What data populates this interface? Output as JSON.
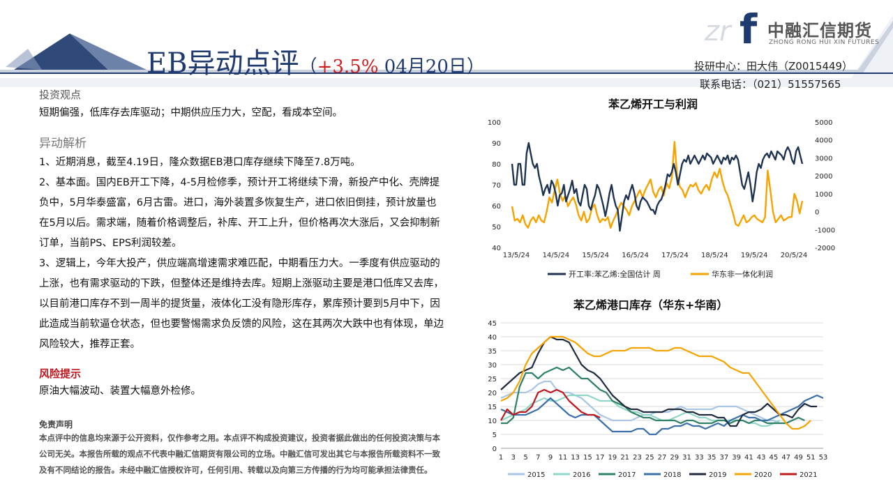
{
  "header": {
    "title": "EB异动点评",
    "title_open": "（",
    "change": "+3.5%",
    "date": "04月20日）"
  },
  "logo": {
    "cn_name": "中融汇信期货",
    "en_name": "ZHONG RONG HUI XIN FUTURES",
    "mark": "f",
    "mark_ghost": "zr"
  },
  "contact": {
    "researcher": "投研中心：田大伟（Z0015449）",
    "phone": "联系电话：（021）51557565"
  },
  "view": {
    "heading": "投资观点",
    "text": "短期偏强，低库存去库驱动；中期供应压力大，空配，看成本空间。"
  },
  "analysis": {
    "heading": "异动解析",
    "p1": "1、近期消息，截至4.19日，隆众数据EB港口库存继续下降至7.8万吨。",
    "p2": "2、基本面。国内EB开工下降，4-5月检修季，预计开工将继续下滑，新投产中化、壳牌提负中，5月华泰盛富，6月古雷。进口，海外装置多恢复生产，进口依旧倒挂，预计放量也在5月以后。需求端，随着价格调整后，补库、开工上升，但价格再次大涨后，又会抑制新订单，当前PS、EPS利润较差。",
    "p3": "3、逻辑上，今年大投产，供应端高增速需求难匹配，中期看压力大。一季度有供应驱动的上涨，也有需求驱动的下跌，但整体还是维持去库。短期上涨驱动主要是港口低库又去库，以目前港口库存不到一周半的提货量，液体化工没有隐形库存，累库预计要到5月中下，因此造成当前软逼仓状态，但也要警惕需求负反馈的风险，这在其两次大跌中也有体现，单边风险较大，推荐正套。"
  },
  "risk": {
    "heading": "风险提示",
    "text": "原油大幅波动、装置大幅意外检修。"
  },
  "disclaimer": {
    "heading": "免责声明",
    "text": "本点评中的信息均来源于公开资料，仅作参考之用。本点评不构成投资建议，投资者据此做出的任何投资决策与本公司无关。本报告所载的观点不代表中融汇信期货有限公司的立场。中融汇信可发出其它与本报告所载资料不一致及有不同结论的报告。未经中融汇信授权许可，任何引用、转载以及向第三方传播的行为均可能承担法律责任。"
  },
  "colors": {
    "navy": "#1f3a6e",
    "red": "#d01c1c",
    "dark_series": "#1e3350",
    "orange_series": "#f5a300"
  },
  "chart_data": [
    {
      "type": "line",
      "title": "苯乙烯开工与利润",
      "x_ticks": [
        "13/5/24",
        "14/5/24",
        "15/5/24",
        "16/5/24",
        "17/5/24",
        "18/5/24",
        "19/5/24",
        "20/5/24"
      ],
      "ylim_left": [
        40,
        100
      ],
      "yticks_left": [
        40,
        50,
        60,
        70,
        80,
        90,
        100
      ],
      "ylim_right": [
        -2000,
        5000
      ],
      "yticks_right": [
        -2000,
        -1000,
        0,
        1000,
        2000,
        3000,
        4000,
        5000
      ],
      "grid": false,
      "legend": "bottom",
      "series": [
        {
          "name": "开工率:苯乙烯:全国估计 周",
          "axis": "left",
          "color": "#1e3350",
          "values": [
            80,
            70,
            70,
            80,
            80,
            70,
            70,
            85,
            90,
            85,
            80,
            78,
            80,
            74,
            70,
            65,
            68,
            70,
            66,
            72,
            70,
            66,
            60,
            65,
            66,
            70,
            62,
            65,
            68,
            72,
            66,
            68,
            62,
            60,
            65,
            70,
            68,
            60,
            58,
            62,
            65,
            70,
            68,
            64,
            60,
            55,
            60,
            66,
            70,
            64,
            60,
            58,
            48,
            55,
            62,
            65,
            63,
            67,
            70,
            66,
            60,
            58,
            62,
            64,
            63,
            62,
            60,
            58,
            58,
            56,
            60,
            62,
            63,
            66,
            70,
            75,
            74,
            76,
            80,
            76,
            70,
            75,
            80,
            82,
            81,
            84,
            80,
            82,
            84,
            82,
            80,
            82,
            84,
            82,
            85,
            84,
            83,
            80,
            82,
            84,
            82,
            80,
            83,
            82,
            84,
            80,
            83,
            82,
            84,
            82,
            76,
            70,
            68,
            72,
            76,
            70,
            62,
            68,
            76,
            80,
            78,
            82,
            84,
            85,
            83,
            86,
            84,
            82,
            86,
            85,
            84,
            82,
            86,
            88,
            86,
            82,
            80,
            86,
            88,
            84,
            80
          ]
        },
        {
          "name": "华东非一体化利润",
          "axis": "right",
          "color": "#f5a300",
          "values": [
            300,
            -500,
            -400,
            -600,
            -200,
            -700,
            -900,
            -500,
            -300,
            -600,
            -200,
            -500,
            -600,
            0,
            800,
            500,
            1200,
            1800,
            1000,
            600,
            900,
            300,
            600,
            800,
            400,
            -200,
            -500,
            0,
            -600,
            -400,
            200,
            400,
            -200,
            -600,
            -400,
            -500,
            -300,
            -900,
            -500,
            -200,
            200,
            500,
            300,
            100,
            -200,
            300,
            600,
            900,
            1200,
            800,
            1200,
            1500,
            1800,
            1100,
            800,
            1200,
            1400,
            900,
            1600,
            1300,
            1900,
            3900,
            2000,
            1400,
            1200,
            800,
            1200,
            1500,
            1400,
            1600,
            1200,
            1000,
            1300,
            1500,
            1200,
            1800,
            2200,
            1900,
            2400,
            1700,
            1200,
            900,
            400,
            -100,
            -700,
            -800,
            -500,
            -200,
            -600,
            -500,
            -300,
            -200,
            -400,
            -500,
            -600,
            -300,
            2300,
            1200,
            0,
            -600,
            -400,
            -200,
            -500,
            -400,
            -300,
            -300,
            1000,
            600,
            -100,
            600
          ]
        }
      ]
    },
    {
      "type": "line",
      "title": "苯乙烯港口库存（华东+华南）",
      "x_ticks": [
        1,
        3,
        5,
        7,
        9,
        11,
        13,
        15,
        17,
        19,
        21,
        23,
        25,
        27,
        29,
        31,
        33,
        35,
        37,
        39,
        41,
        43,
        45,
        47,
        49,
        51,
        53
      ],
      "ylim": [
        0,
        45
      ],
      "yticks": [
        0,
        5,
        10,
        15,
        20,
        25,
        30,
        35,
        40,
        45
      ],
      "grid": true,
      "legend": "bottom",
      "series": [
        {
          "name": "2015",
          "color": "#a9c6e6",
          "values": [
            18,
            19,
            20,
            20,
            20,
            21,
            23,
            24,
            24,
            21,
            20,
            20,
            19,
            18,
            16,
            14,
            12,
            11,
            10,
            10,
            10,
            10,
            11,
            12,
            12,
            13,
            13,
            13,
            14,
            15,
            14,
            14,
            14,
            14,
            14,
            15,
            15,
            15,
            15,
            14,
            13,
            12,
            11,
            10,
            10,
            9,
            9,
            10,
            11
          ]
        },
        {
          "name": "2016",
          "color": "#8fd6c8",
          "values": [
            10,
            11,
            12,
            13,
            14,
            16,
            17,
            18,
            17,
            17,
            18,
            19,
            19,
            19,
            19,
            18,
            17,
            17,
            17,
            15,
            14,
            13,
            13,
            12,
            12,
            11,
            10,
            10,
            11,
            12,
            13,
            12,
            11,
            11,
            10,
            10,
            10,
            10,
            10,
            10,
            9,
            9,
            8,
            8,
            9,
            10
          ]
        },
        {
          "name": "2017",
          "color": "#2e8067",
          "values": [
            9,
            9,
            11,
            22,
            27,
            27,
            25,
            27,
            28,
            29,
            28,
            29,
            27,
            25,
            25,
            23,
            21,
            20,
            17,
            16,
            15,
            13,
            12,
            11,
            11,
            10,
            10,
            10,
            10,
            9,
            10,
            10,
            9,
            9,
            9,
            10,
            10,
            9,
            10,
            10,
            9,
            10,
            10,
            9,
            9,
            9,
            9,
            10,
            11,
            10
          ]
        },
        {
          "name": "2018",
          "color": "#3a6fa8",
          "values": [
            14,
            13,
            12,
            12,
            12,
            13,
            14,
            16,
            18,
            16,
            14,
            12,
            11,
            12,
            12,
            12,
            10,
            8,
            6,
            6,
            6,
            6,
            7,
            7,
            5,
            5,
            7,
            7,
            8,
            8,
            9,
            8,
            8,
            7,
            8,
            9,
            8,
            10,
            11,
            12,
            11,
            11,
            10,
            10,
            11,
            12,
            13,
            14,
            15,
            17,
            18,
            19,
            18
          ]
        },
        {
          "name": "2019",
          "color": "#1e2a3e",
          "values": [
            21,
            23,
            25,
            27,
            28,
            29,
            34,
            38,
            40,
            39,
            39,
            38,
            34,
            30,
            28,
            27,
            25,
            22,
            19,
            17,
            15,
            14,
            14,
            13,
            13,
            13,
            13,
            14,
            14,
            14,
            13,
            13,
            12,
            12,
            12,
            11,
            11,
            8,
            8,
            12,
            13,
            13,
            14,
            16,
            14,
            12,
            12,
            11,
            14,
            16,
            15,
            15
          ]
        },
        {
          "name": "2020",
          "color": "#f5a300",
          "values": [
            17,
            18,
            20,
            24,
            30,
            34,
            36,
            38,
            40,
            40,
            40,
            39,
            38,
            36,
            34,
            33,
            33,
            34,
            35,
            35,
            35,
            36,
            36,
            36,
            36,
            35,
            35,
            35,
            36,
            36,
            35,
            34,
            33,
            33,
            33,
            32,
            31,
            29,
            28,
            27,
            27,
            24,
            21,
            18,
            15,
            12,
            9,
            7,
            7,
            8,
            10
          ]
        },
        {
          "name": "2021",
          "color": "#c0171e",
          "values": [
            10,
            14,
            12,
            13,
            13,
            15,
            20,
            21,
            20,
            21,
            20,
            17,
            15,
            13,
            12,
            12,
            11
          ]
        }
      ]
    }
  ]
}
